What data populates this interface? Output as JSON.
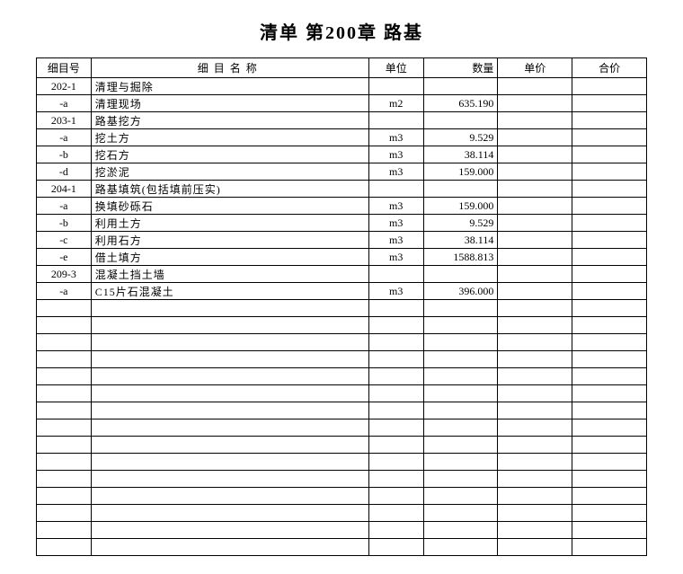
{
  "title": "清单 第200章 路基",
  "headers": {
    "id": "细目号",
    "name": "细目名称",
    "unit": "单位",
    "qty": "数量",
    "price": "单价",
    "total": "合价"
  },
  "rows": [
    {
      "id": "202-1",
      "name": "清理与掘除",
      "unit": "",
      "qty": ""
    },
    {
      "id": "-a",
      "name": "清理现场",
      "unit": "m2",
      "qty": "635.190"
    },
    {
      "id": "203-1",
      "name": "路基挖方",
      "unit": "",
      "qty": ""
    },
    {
      "id": "-a",
      "name": "挖土方",
      "unit": "m3",
      "qty": "9.529"
    },
    {
      "id": "-b",
      "name": "挖石方",
      "unit": "m3",
      "qty": "38.114"
    },
    {
      "id": "-d",
      "name": "挖淤泥",
      "unit": "m3",
      "qty": "159.000"
    },
    {
      "id": "204-1",
      "name": "路基填筑(包括填前压实)",
      "unit": "",
      "qty": ""
    },
    {
      "id": "-a",
      "name": "换填砂砾石",
      "unit": "m3",
      "qty": "159.000"
    },
    {
      "id": "-b",
      "name": "利用土方",
      "unit": "m3",
      "qty": "9.529"
    },
    {
      "id": "-c",
      "name": "利用石方",
      "unit": "m3",
      "qty": "38.114"
    },
    {
      "id": "-e",
      "name": "借土填方",
      "unit": "m3",
      "qty": "1588.813"
    },
    {
      "id": "209-3",
      "name": "混凝土挡土墙",
      "unit": "",
      "qty": ""
    },
    {
      "id": "-a",
      "name": "C15片石混凝土",
      "unit": "m3",
      "qty": "396.000"
    }
  ],
  "emptyRows": 15,
  "style": {
    "background": "#ffffff",
    "borderColor": "#000000",
    "fontSize": 12,
    "titleFontSize": 20
  }
}
